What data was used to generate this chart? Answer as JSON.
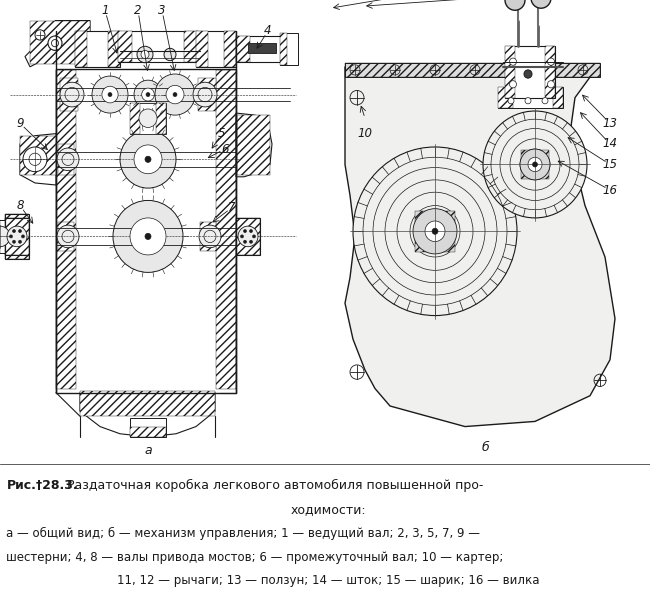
{
  "title_bold": "Рис.†28.3.",
  "title_rest": "  Раздаточная коробка легкового автомобиля повышенной про-",
  "title_line2": "ходимости:",
  "caption_line1": "а — общий вид; б — механизм управления; 1 — ведущий вал; 2, 3, 5, 7, 9 —",
  "caption_line2": "шестерни; 4, 8 — валы привода мостов; 6 — промежуточный вал; 10 — картер;",
  "caption_line3": "11, 12 — рычаги; 13 — ползун; 14 — шток; 15 — шарик; 16 — вилка",
  "label_a": "а",
  "label_b": "б",
  "bg_color": "#ffffff",
  "fg_color": "#1a1a1a",
  "gray1": "#c8c8c8",
  "gray2": "#e0e0e0",
  "gray3": "#a0a0a0",
  "figsize": [
    6.5,
    5.93
  ],
  "dpi": 100
}
